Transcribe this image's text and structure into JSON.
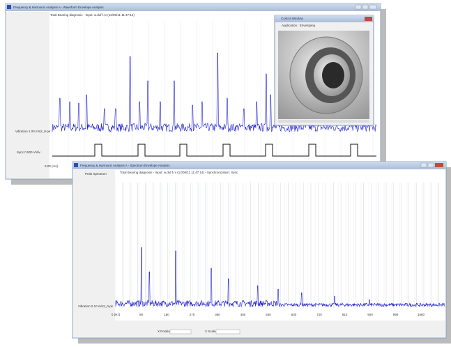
{
  "window1": {
    "title": "Frequency & Harmonic Analysis A - Waveform Envelope Analysis",
    "subtitle": "Total Bearing diagnosis - Input: w.dof f.rv (12/08/11 11:47:14)",
    "vibration_label": "Vibration 1.00 m/s2_0-pk",
    "sync_label": "Sync 0.500 V/div",
    "x_start": "0.00 (ms)"
  },
  "control_window": {
    "title": "Control Window",
    "application": "Application : Enveloping"
  },
  "window2": {
    "title": "Frequency & Harmonic Analysis A - Spectrum Envelope Analysis",
    "subtitle": "Total Bearing diagnosis - Input: w.dof f.rv (12/08/11 11:47:14) - Synchronization: Sync",
    "panel_label": "Peak Spectrum",
    "vibration_label": "Vibration 0.10 m/s2_0-pk",
    "x_labels": [
      "0 (Hz)",
      "90",
      "180",
      "270",
      "360",
      "450",
      "540",
      "630",
      "720",
      "810",
      "900",
      "990",
      "1080"
    ],
    "x_position": "X Position",
    "x_scale": "X Scale"
  }
}
